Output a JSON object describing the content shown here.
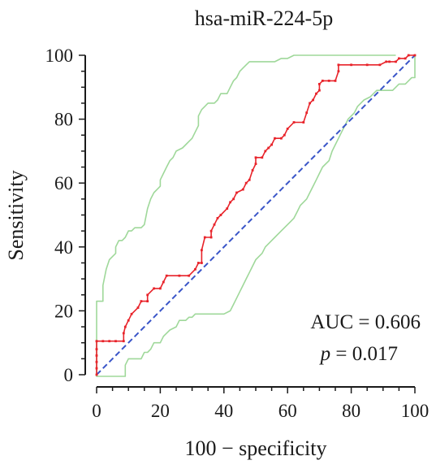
{
  "chart_data": {
    "type": "line",
    "title": "hsa-miR-224-5p",
    "xlabel": "100 − specificity",
    "ylabel": "Sensitivity",
    "xlim": [
      0,
      100
    ],
    "ylim": [
      0,
      100
    ],
    "x_ticks": [
      0,
      20,
      40,
      60,
      80,
      100
    ],
    "y_ticks": [
      0,
      20,
      40,
      60,
      80,
      100
    ],
    "grid": false,
    "annotations": {
      "auc": "AUC = 0.606",
      "p_symbol": "p",
      "p_value": " = 0.017"
    },
    "series": [
      {
        "role": "roc",
        "color": "#e8232a",
        "points": [
          [
            0,
            0
          ],
          [
            0,
            2
          ],
          [
            0,
            4
          ],
          [
            0,
            6
          ],
          [
            0,
            8
          ],
          [
            0,
            10.5
          ],
          [
            2,
            10.5
          ],
          [
            4,
            10.5
          ],
          [
            6,
            10.5
          ],
          [
            8.5,
            10.5
          ],
          [
            8.5,
            13
          ],
          [
            9,
            15
          ],
          [
            10,
            17
          ],
          [
            11,
            19
          ],
          [
            13,
            21
          ],
          [
            14,
            23
          ],
          [
            16,
            23
          ],
          [
            16,
            25
          ],
          [
            18,
            27
          ],
          [
            20,
            27
          ],
          [
            21,
            29
          ],
          [
            22,
            31
          ],
          [
            26,
            31
          ],
          [
            29,
            31
          ],
          [
            31,
            33
          ],
          [
            32,
            35
          ],
          [
            33,
            35
          ],
          [
            33,
            39
          ],
          [
            34,
            43
          ],
          [
            36,
            43
          ],
          [
            36,
            45
          ],
          [
            37,
            47
          ],
          [
            38,
            49
          ],
          [
            39,
            50
          ],
          [
            41,
            52
          ],
          [
            42,
            54
          ],
          [
            43,
            55
          ],
          [
            44,
            57
          ],
          [
            46,
            58
          ],
          [
            47,
            60
          ],
          [
            48,
            61
          ],
          [
            49,
            64
          ],
          [
            50,
            66
          ],
          [
            50,
            68
          ],
          [
            52,
            68
          ],
          [
            53,
            70
          ],
          [
            54,
            71
          ],
          [
            55,
            72
          ],
          [
            56,
            74
          ],
          [
            58,
            74
          ],
          [
            59,
            75
          ],
          [
            60,
            77
          ],
          [
            62,
            79
          ],
          [
            65,
            79
          ],
          [
            66,
            82
          ],
          [
            67,
            85
          ],
          [
            68,
            86
          ],
          [
            69,
            88
          ],
          [
            70,
            89
          ],
          [
            70,
            91
          ],
          [
            71,
            92
          ],
          [
            73,
            92
          ],
          [
            75,
            92
          ],
          [
            76,
            95
          ],
          [
            76,
            97
          ],
          [
            80,
            97
          ],
          [
            85,
            97
          ],
          [
            89,
            97
          ],
          [
            91,
            98
          ],
          [
            92,
            98
          ],
          [
            94,
            98
          ],
          [
            95,
            99
          ],
          [
            97,
            99
          ],
          [
            98,
            100
          ],
          [
            100,
            100
          ]
        ]
      },
      {
        "role": "reference",
        "color": "#3a55c8",
        "points": [
          [
            0,
            0
          ],
          [
            100,
            100
          ]
        ]
      },
      {
        "role": "ci-upper",
        "color": "#9fd89a",
        "points": [
          [
            0,
            0
          ],
          [
            0,
            23
          ],
          [
            2,
            23
          ],
          [
            2,
            28
          ],
          [
            3,
            33
          ],
          [
            4,
            36
          ],
          [
            5,
            37
          ],
          [
            6,
            38
          ],
          [
            6,
            40
          ],
          [
            7,
            42
          ],
          [
            8,
            42
          ],
          [
            9,
            43
          ],
          [
            10,
            45
          ],
          [
            11,
            45
          ],
          [
            12,
            46
          ],
          [
            14,
            46
          ],
          [
            15,
            47
          ],
          [
            16,
            52
          ],
          [
            17,
            55
          ],
          [
            18,
            57
          ],
          [
            19,
            58
          ],
          [
            20,
            59
          ],
          [
            20,
            61
          ],
          [
            21,
            63
          ],
          [
            22,
            65
          ],
          [
            23,
            67
          ],
          [
            24,
            68
          ],
          [
            25,
            70
          ],
          [
            27,
            71
          ],
          [
            28,
            72
          ],
          [
            29,
            73
          ],
          [
            30,
            74
          ],
          [
            31,
            76
          ],
          [
            32,
            78
          ],
          [
            32,
            81
          ],
          [
            33,
            83
          ],
          [
            34,
            84
          ],
          [
            35,
            85
          ],
          [
            37,
            85
          ],
          [
            38,
            86
          ],
          [
            39,
            88
          ],
          [
            41,
            88
          ],
          [
            42,
            90
          ],
          [
            43,
            92
          ],
          [
            44,
            93
          ],
          [
            45,
            95
          ],
          [
            46,
            96
          ],
          [
            47,
            97
          ],
          [
            48,
            98
          ],
          [
            52,
            98
          ],
          [
            54,
            98
          ],
          [
            56,
            98
          ],
          [
            58,
            99
          ],
          [
            60,
            99
          ],
          [
            62,
            100
          ],
          [
            65,
            100
          ],
          [
            68,
            100
          ],
          [
            72,
            100
          ],
          [
            76,
            100
          ],
          [
            80,
            100
          ],
          [
            84,
            100
          ],
          [
            88,
            100
          ],
          [
            94,
            100
          ]
        ]
      },
      {
        "role": "ci-lower",
        "color": "#9fd89a",
        "points": [
          [
            0,
            0
          ],
          [
            0,
            -0.5
          ],
          [
            4,
            -0.5
          ],
          [
            9,
            -0.5
          ],
          [
            9,
            3
          ],
          [
            10,
            5
          ],
          [
            12,
            5
          ],
          [
            14,
            5
          ],
          [
            15,
            7
          ],
          [
            16,
            7
          ],
          [
            17,
            8
          ],
          [
            18,
            10
          ],
          [
            20,
            10
          ],
          [
            21,
            12
          ],
          [
            22,
            13
          ],
          [
            23,
            14
          ],
          [
            25,
            15
          ],
          [
            26,
            17
          ],
          [
            28,
            17
          ],
          [
            29,
            18
          ],
          [
            30,
            18
          ],
          [
            31,
            19
          ],
          [
            34,
            19
          ],
          [
            37,
            19
          ],
          [
            40,
            19
          ],
          [
            42,
            20
          ],
          [
            43,
            22
          ],
          [
            44,
            24
          ],
          [
            45,
            26
          ],
          [
            46,
            28
          ],
          [
            47,
            30
          ],
          [
            48,
            32
          ],
          [
            49,
            34
          ],
          [
            50,
            36
          ],
          [
            51,
            37
          ],
          [
            52,
            38
          ],
          [
            53,
            40
          ],
          [
            55,
            42
          ],
          [
            56,
            43
          ],
          [
            57,
            44
          ],
          [
            58,
            45
          ],
          [
            59,
            46
          ],
          [
            61,
            48
          ],
          [
            62,
            49
          ],
          [
            63,
            51
          ],
          [
            64,
            53
          ],
          [
            65,
            54
          ],
          [
            66,
            55
          ],
          [
            67,
            57
          ],
          [
            68,
            59
          ],
          [
            69,
            61
          ],
          [
            70,
            63
          ],
          [
            71,
            65
          ],
          [
            73,
            67
          ],
          [
            74,
            70
          ],
          [
            75,
            72
          ],
          [
            76,
            74
          ],
          [
            77,
            76
          ],
          [
            78,
            78
          ],
          [
            79,
            80
          ],
          [
            80,
            81
          ],
          [
            81,
            82
          ],
          [
            82,
            84
          ],
          [
            83,
            85
          ],
          [
            84,
            86
          ],
          [
            86,
            87
          ],
          [
            87,
            88
          ],
          [
            88,
            89
          ],
          [
            90,
            89
          ],
          [
            93,
            89
          ],
          [
            94,
            90
          ],
          [
            95,
            91
          ],
          [
            97,
            91
          ],
          [
            98,
            92
          ],
          [
            99,
            93
          ],
          [
            100,
            93
          ],
          [
            100,
            100
          ]
        ]
      }
    ]
  }
}
